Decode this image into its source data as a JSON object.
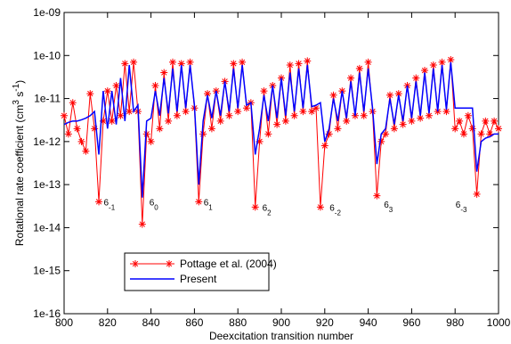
{
  "chart_data": {
    "type": "line",
    "x_label": "Deexcitation transition number",
    "y_label": [
      "Rotational rate coefficient (cm",
      "3",
      " s",
      "-1",
      ")"
    ],
    "xlim": [
      800,
      1000
    ],
    "xticks": [
      800,
      820,
      840,
      860,
      880,
      900,
      920,
      940,
      960,
      980,
      1000
    ],
    "ylim": [
      1e-16,
      1e-09
    ],
    "yscale": "log",
    "yticks": [
      {
        "value": 1e-16,
        "label": "1e-16"
      },
      {
        "value": 1e-15,
        "label": "1e-15"
      },
      {
        "value": 1e-14,
        "label": "1e-14"
      },
      {
        "value": 1e-13,
        "label": "1e-13"
      },
      {
        "value": 1e-12,
        "label": "1e-12"
      },
      {
        "value": 1e-11,
        "label": "1e-11"
      },
      {
        "value": 1e-10,
        "label": "1e-10"
      },
      {
        "value": 1e-09,
        "label": "1e-09"
      }
    ],
    "legend": "lower left",
    "x": [
      800,
      802,
      804,
      806,
      808,
      810,
      812,
      814,
      816,
      818,
      820,
      822,
      824,
      826,
      828,
      830,
      832,
      834,
      836,
      838,
      840,
      842,
      844,
      846,
      848,
      850,
      852,
      854,
      856,
      858,
      860,
      862,
      864,
      866,
      868,
      870,
      872,
      874,
      876,
      878,
      880,
      882,
      884,
      886,
      888,
      890,
      892,
      894,
      896,
      898,
      900,
      902,
      904,
      906,
      908,
      910,
      912,
      914,
      916,
      918,
      920,
      922,
      924,
      926,
      928,
      930,
      932,
      934,
      936,
      938,
      940,
      942,
      944,
      946,
      948,
      950,
      952,
      954,
      956,
      958,
      960,
      962,
      964,
      966,
      968,
      970,
      972,
      974,
      976,
      978,
      980,
      982,
      984,
      986,
      988,
      990,
      992,
      994,
      996,
      998,
      1000
    ],
    "series": [
      {
        "name": "Pottage et al. (2004)",
        "color": "#ff0000",
        "marker": "asterisk",
        "values": [
          4e-12,
          1.5e-12,
          8e-12,
          2e-12,
          1e-12,
          6e-13,
          1.3e-11,
          2e-12,
          4e-14,
          3e-12,
          1.5e-11,
          3e-12,
          2e-11,
          4e-12,
          6.5e-11,
          5e-12,
          7e-11,
          5e-12,
          1.2e-14,
          1.5e-12,
          1e-12,
          2e-11,
          2e-12,
          4e-11,
          3e-12,
          7e-11,
          4e-12,
          6.5e-11,
          5e-12,
          7e-11,
          6e-12,
          4e-14,
          1.5e-12,
          1.3e-11,
          2e-12,
          1.5e-11,
          3e-12,
          2.5e-11,
          4e-12,
          6.5e-11,
          5e-12,
          7e-11,
          6e-12,
          8e-12,
          3e-14,
          1e-12,
          1.5e-11,
          1.5e-12,
          2e-11,
          2.5e-12,
          3e-11,
          3e-12,
          6e-11,
          4e-12,
          6.5e-11,
          5e-12,
          7.5e-11,
          5e-12,
          6e-12,
          3e-14,
          8e-13,
          1.5e-12,
          1.2e-11,
          2e-12,
          1.5e-11,
          3e-12,
          3e-11,
          4e-12,
          5e-11,
          4e-12,
          7e-11,
          5e-12,
          5.5e-14,
          1e-12,
          1.5e-12,
          1.2e-11,
          2e-12,
          1.3e-11,
          2.5e-12,
          2e-11,
          3e-12,
          3e-11,
          3.5e-12,
          4.5e-11,
          4e-12,
          6e-11,
          5e-12,
          7e-11,
          5e-12,
          8e-11,
          2e-12,
          3e-12,
          1.5e-12,
          4e-12,
          2e-12,
          6e-14,
          1.5e-12,
          3e-12,
          1.5e-12,
          3e-12,
          2e-12
        ]
      },
      {
        "name": "Present",
        "color": "#0000ff",
        "values": [
          2.5e-12,
          2.8e-12,
          3e-12,
          3e-12,
          3.2e-12,
          3.5e-12,
          4e-12,
          5e-12,
          5e-13,
          1.5e-11,
          2e-12,
          1.5e-11,
          2.5e-12,
          3e-11,
          3e-12,
          6e-11,
          5e-12,
          7e-12,
          5e-14,
          3e-12,
          3.5e-12,
          1.5e-11,
          4e-12,
          3e-11,
          4.5e-12,
          5e-11,
          5e-12,
          6e-11,
          6e-12,
          6e-11,
          7e-12,
          1e-13,
          3e-12,
          1.2e-11,
          3.5e-12,
          1.5e-11,
          4e-12,
          2.5e-11,
          5e-12,
          5e-11,
          6e-12,
          6e-11,
          7e-12,
          8e-12,
          5e-13,
          2e-12,
          1.2e-11,
          3e-12,
          2e-11,
          3.5e-12,
          3e-11,
          4e-12,
          4e-11,
          5e-12,
          5e-11,
          6e-12,
          6e-11,
          6.5e-12,
          7e-12,
          8e-12,
          1e-12,
          2e-12,
          1e-11,
          3e-12,
          1.5e-11,
          3.5e-12,
          2.5e-11,
          4e-12,
          4e-11,
          5e-12,
          5e-11,
          6e-12,
          3e-13,
          1.5e-12,
          2e-12,
          1e-11,
          2.5e-12,
          1.2e-11,
          3e-12,
          2e-11,
          3.5e-12,
          2.5e-11,
          4e-12,
          4e-11,
          4.5e-12,
          5e-11,
          5e-12,
          6e-11,
          5.5e-12,
          7e-11,
          6e-12,
          6e-12,
          6e-12,
          6e-12,
          6e-12,
          2e-13,
          1e-12,
          1.2e-12,
          1.3e-12,
          1.5e-12,
          1.5e-12
        ]
      }
    ],
    "annotations": [
      {
        "text": "6",
        "sub": "-1",
        "x": 817,
        "y": 4e-14
      },
      {
        "text": "6",
        "sub": "0",
        "x": 838,
        "y": 4e-14
      },
      {
        "text": "6",
        "sub": "1",
        "x": 863,
        "y": 4e-14
      },
      {
        "text": "6",
        "sub": "2",
        "x": 890,
        "y": 3e-14
      },
      {
        "text": "6",
        "sub": "-2",
        "x": 921,
        "y": 3e-14
      },
      {
        "text": "6",
        "sub": "3",
        "x": 946,
        "y": 3.5e-14
      },
      {
        "text": "6",
        "sub": "-3",
        "x": 979,
        "y": 3.5e-14
      }
    ]
  }
}
